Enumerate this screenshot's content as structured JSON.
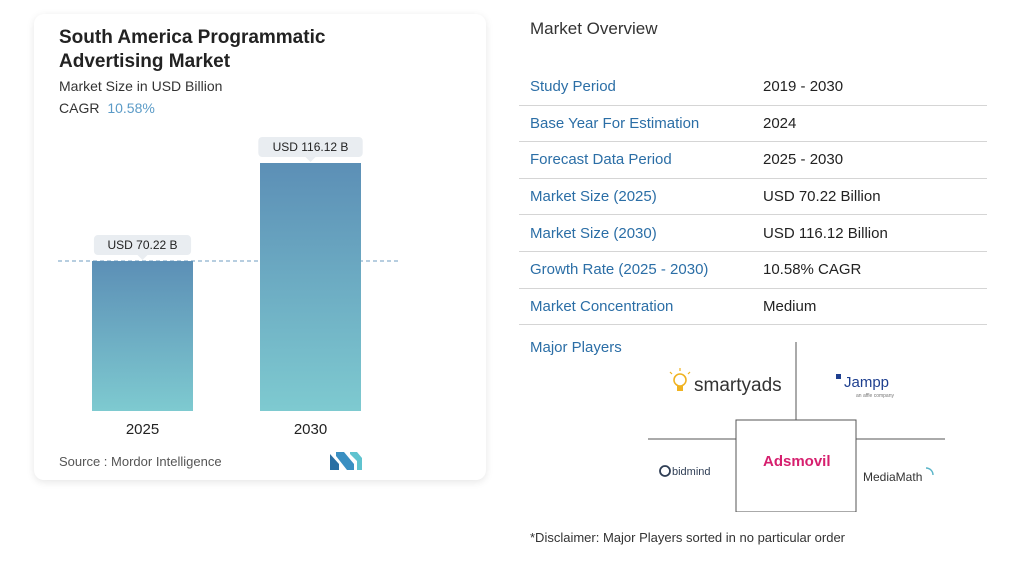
{
  "chart_data": {
    "type": "bar",
    "title": "South America Programmatic Advertising Market",
    "subtitle": "Market Size in USD Billion",
    "cagr_label": "CAGR",
    "cagr_value": "10.58%",
    "categories": [
      "2025",
      "2030"
    ],
    "values": [
      70.22,
      116.12
    ],
    "data_labels": [
      "USD 70.22 B",
      "USD 116.12 B"
    ],
    "ylim": [
      0,
      116.12
    ],
    "reference_line": "dashed line at 2025 value",
    "colors": {
      "bar_top": "#5c8fb6",
      "bar_bottom": "#7ecad0",
      "cagr": "#5b9bc7"
    },
    "source": "Source : Mordor Intelligence"
  },
  "overview": {
    "title": "Market Overview",
    "rows": [
      {
        "label": "Study Period",
        "value": "2019 - 2030"
      },
      {
        "label": "Base Year For Estimation",
        "value": "2024"
      },
      {
        "label": "Forecast Data Period",
        "value": "2025 - 2030"
      },
      {
        "label": "Market Size (2025)",
        "value": "USD 70.22 Billion"
      },
      {
        "label": "Market Size (2030)",
        "value": "USD 116.12 Billion"
      },
      {
        "label": "Growth Rate (2025 - 2030)",
        "value": "10.58% CAGR"
      },
      {
        "label": "Market Concentration",
        "value": "Medium"
      }
    ]
  },
  "players": {
    "title": "Major Players",
    "names": [
      "smartyads",
      "Jampp",
      "bidmind",
      "Adsmovil",
      "MediaMath"
    ],
    "jampp_tagline": "an affle company"
  },
  "disclaimer": "*Disclaimer: Major Players sorted in no particular order"
}
